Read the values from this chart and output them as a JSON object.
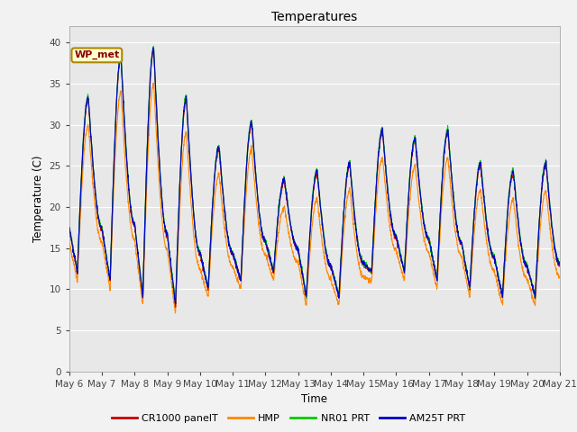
{
  "title": "Temperatures",
  "xlabel": "Time",
  "ylabel": "Temperature (C)",
  "ylim": [
    0,
    42
  ],
  "yticks": [
    0,
    5,
    10,
    15,
    20,
    25,
    30,
    35,
    40
  ],
  "series_colors": [
    "#cc0000",
    "#ff8800",
    "#00cc00",
    "#0000cc"
  ],
  "series_labels": [
    "CR1000 panelT",
    "HMP",
    "NR01 PRT",
    "AM25T PRT"
  ],
  "annotation_text": "WP_met",
  "plot_bg_color": "#e8e8e8",
  "fig_bg_color": "#f2f2f2",
  "num_days": 15,
  "start_day": 6,
  "linewidth": 0.8,
  "day_peaks": [
    33,
    38,
    39,
    33,
    27,
    30,
    23,
    24,
    25,
    29,
    28,
    29,
    25,
    24,
    25
  ],
  "day_troughs": [
    12,
    11,
    9,
    8,
    10,
    11,
    12,
    9,
    9,
    12,
    12,
    11,
    10,
    9,
    9
  ],
  "hmp_reduction_day": [
    3,
    4,
    4,
    4,
    3,
    3,
    3,
    3,
    3,
    3,
    3,
    3,
    3,
    3,
    3
  ]
}
